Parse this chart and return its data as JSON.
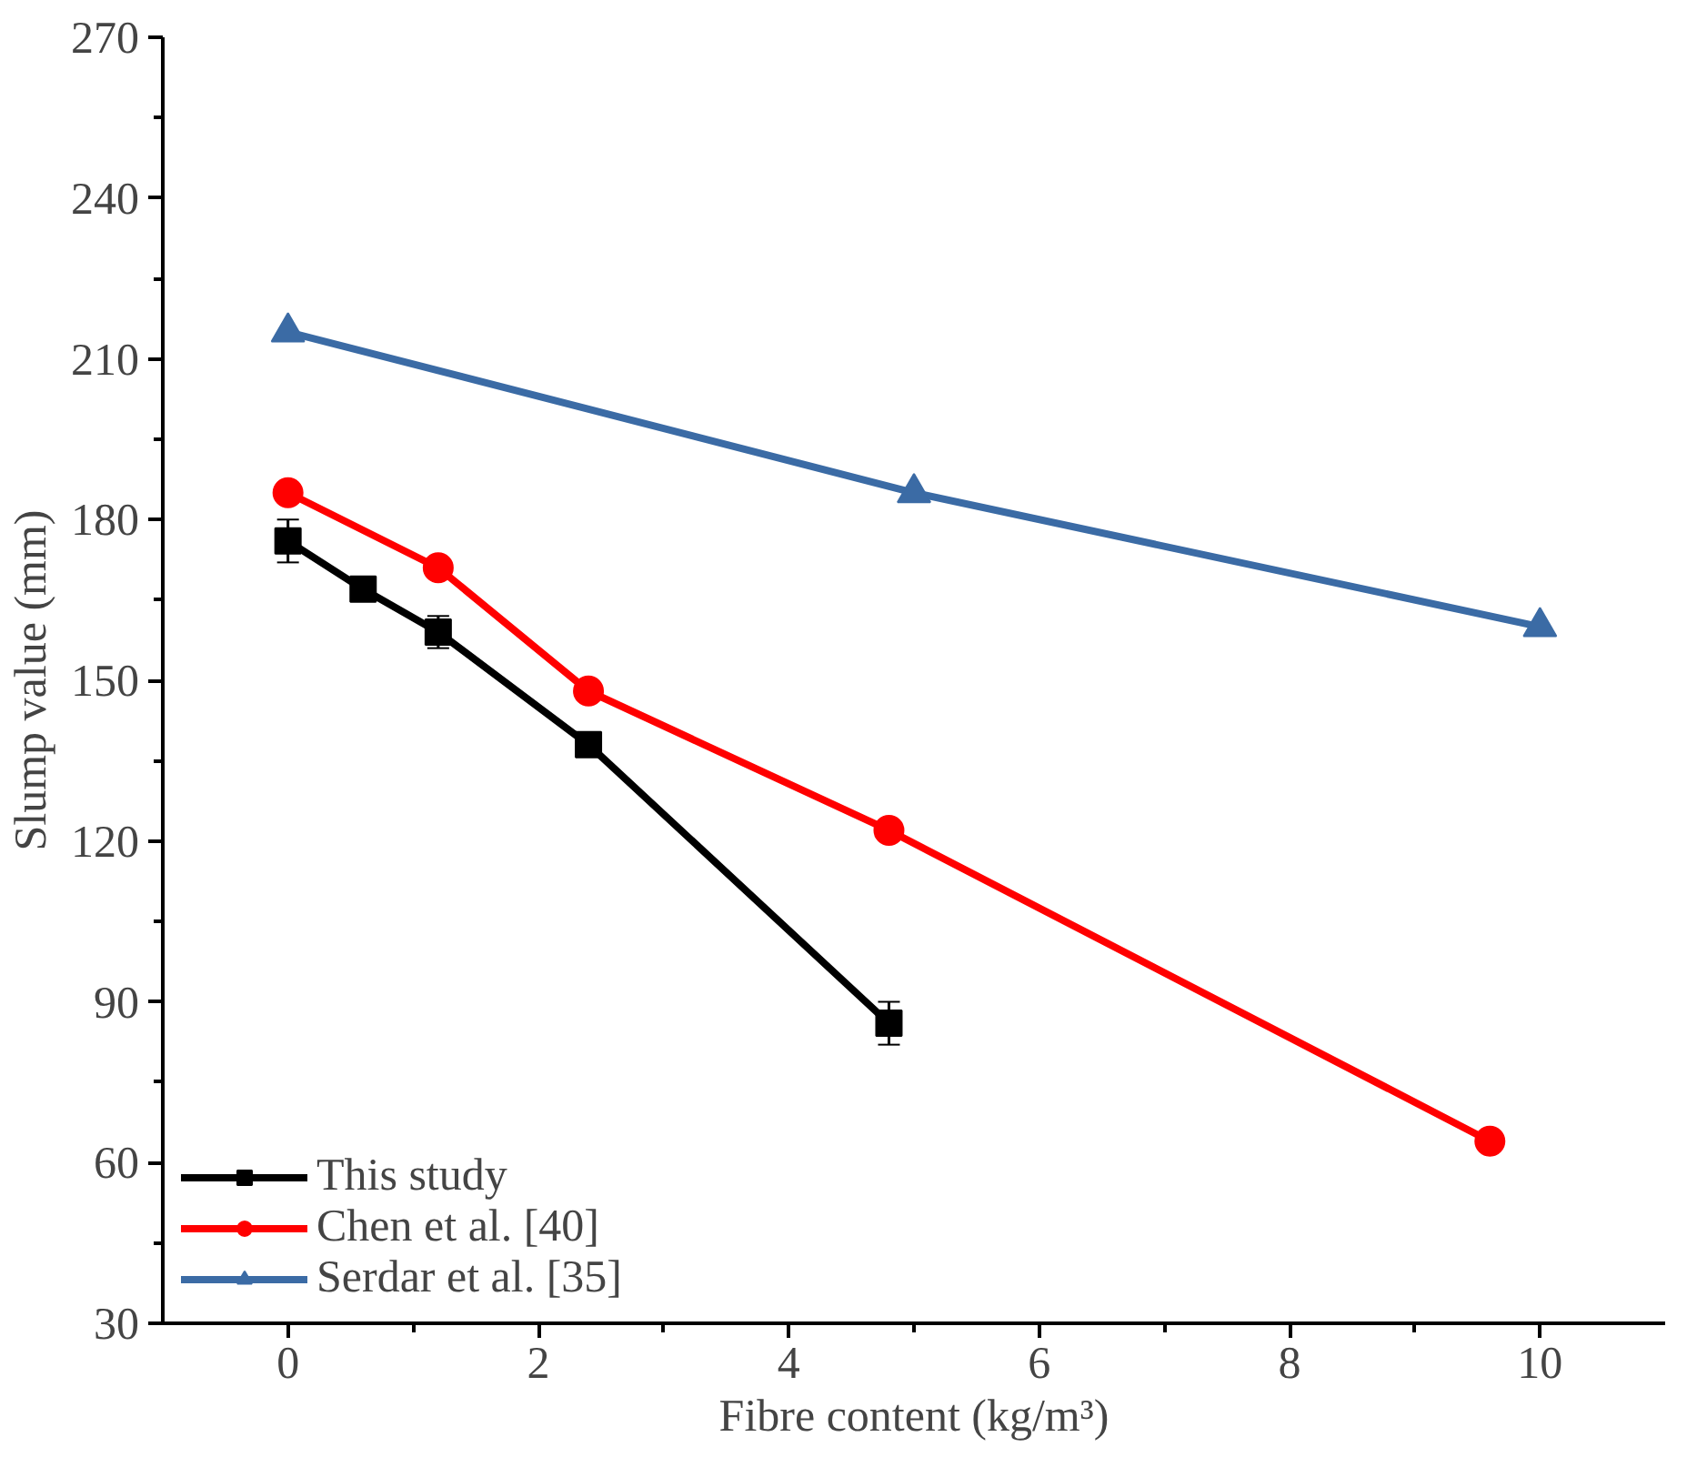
{
  "chart_data": {
    "type": "line",
    "xlabel": "Fibre content (kg/m³)",
    "ylabel": "Slump value (mm)",
    "xlim": [
      -1,
      11
    ],
    "ylim": [
      30,
      270
    ],
    "xticks": [
      0,
      2,
      4,
      6,
      8,
      10
    ],
    "yticks": [
      30,
      60,
      90,
      120,
      150,
      180,
      210,
      240,
      270
    ],
    "grid": false,
    "legend": "bottom left",
    "series": [
      {
        "name": "This study",
        "color": "#000000",
        "marker": "square",
        "x": [
          0,
          0.6,
          1.2,
          2.4,
          4.8
        ],
        "values": [
          176,
          167,
          159,
          138,
          86
        ],
        "errors": [
          4,
          2,
          3,
          null,
          4
        ]
      },
      {
        "name": "Chen et al. [40]",
        "color": "#ff0000",
        "marker": "circle",
        "x": [
          0,
          1.2,
          2.4,
          4.8,
          9.6
        ],
        "values": [
          185,
          171,
          148,
          122,
          64
        ]
      },
      {
        "name": "Serdar et al. [35]",
        "color": "#3b6ba5",
        "marker": "triangle",
        "x": [
          0,
          5,
          10
        ],
        "values": [
          215,
          185,
          160
        ]
      }
    ]
  }
}
